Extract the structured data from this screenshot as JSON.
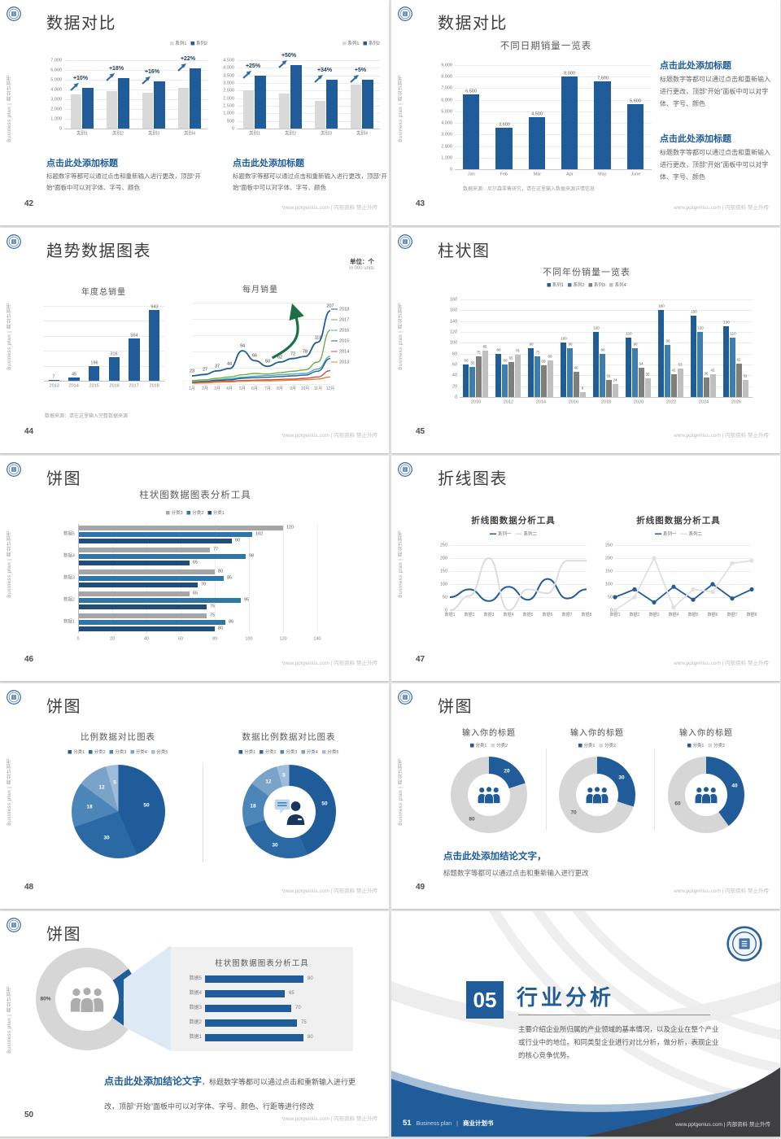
{
  "page": {
    "sidebar_text": "Business plan | 商业计划书",
    "footer_site": "www.pptgenius.com | 内部资料 禁止外传"
  },
  "colors": {
    "primary_blue": "#1F5C99",
    "medium_blue": "#3D7CB0",
    "navy": "#1F4E79",
    "light_gray_bar": "#D9D9D9",
    "gray_bar": "#A6A6A6",
    "green_arrow": "#1B7145"
  },
  "slides": {
    "s42": {
      "number": "42",
      "title": "数据对比",
      "block1_title": "点击此处添加标题",
      "block1_body": "标题数字等都可以通过点击和重新输入进行更改，顶部“开始”面板中可以对字体、字号、颜色",
      "block2_title": "点击此处添加标题",
      "block2_body": "标题数字等都可以通过点击和重新输入进行更改，顶部“开始”面板中可以对字体、字号、颜色"
    },
    "s43": {
      "number": "43",
      "title": "数据对比",
      "chart_title": "不同日期销量一览表",
      "source_note": "数据来源：尼尔森零售研究，请在这里输入数据来源详情信息",
      "block1_title": "点击此处添加标题",
      "block1_body": "标题数字等都可以通过点击和重新输入进行更改，顶部“开始”面板中可以对字体、字号、颜色",
      "block2_title": "点击此处添加标题",
      "block2_body": "标题数字等都可以通过点击和重新输入进行更改，顶部“开始”面板中可以对字体、字号、颜色"
    },
    "s44": {
      "number": "44",
      "title": "趋势数据图表",
      "unit_main": "单位：个",
      "unit_sub": "in 000 units",
      "chart_title_left": "年度总销量",
      "chart_title_right": "每月销量",
      "source_note": "数据来源：请在这里输入完整数据来源"
    },
    "s45": {
      "number": "45",
      "title": "柱状图",
      "chart_title": "不同年份销量一览表"
    },
    "s46": {
      "number": "46",
      "title": "饼图",
      "chart_title": "柱状图数据图表分析工具"
    },
    "s47": {
      "number": "47",
      "title": "折线图表",
      "chart_title": "折线图数据分析工具"
    },
    "s48": {
      "number": "48",
      "title": "饼图",
      "chart_title_left": "比例数据对比图表",
      "chart_title_right": "数据比例数据对比图表"
    },
    "s49": {
      "number": "49",
      "title": "饼图",
      "chart_title": "输入你的标题",
      "conclusion_title": "点击此处添加结论文字，",
      "conclusion_body": "标题数字等都可以通过点击和重新输入进行更改"
    },
    "s50": {
      "number": "50",
      "title": "饼图",
      "panel_title": "柱状图数据图表分析工具",
      "conclusion_title": "点击此处添加结论文字",
      "conclusion_body": "，标题数字等都可以通过点击和重新输入进行更改，顶部“开始”面板中可以对字体、字号、颜色、行距等进行修改"
    },
    "s51": {
      "number": "51",
      "section_no": "05",
      "title": "行业分析",
      "body": "主要介绍企业所归属的产业领域的基本情况，以及企业在整个产业或行业中的地位。和同类型企业进行对比分析，做分析，表现企业的核心竞争优势。",
      "footer_en": "Business plan",
      "footer_sep": "|",
      "footer_cn": "商业计划书"
    }
  },
  "chart_data": [
    {
      "id": "s42a",
      "type": "bar",
      "categories": [
        "类别1",
        "类别2",
        "类别3",
        "类别4"
      ],
      "series": [
        {
          "name": "系列1",
          "color": "#D9D9D9",
          "values": [
            3500,
            3800,
            3700,
            4200
          ]
        },
        {
          "name": "系列2",
          "color": "#1F5C99",
          "values": [
            4200,
            5200,
            4800,
            6200
          ]
        }
      ],
      "ylim": [
        0,
        7000
      ],
      "ytick": 1000,
      "padT": 16,
      "annotations": [
        "+10%",
        "+18%",
        "+16%",
        "+22%"
      ]
    },
    {
      "id": "s42b",
      "type": "bar",
      "categories": [
        "类别1",
        "类别2",
        "类别3",
        "类别4"
      ],
      "series": [
        {
          "name": "系列1",
          "color": "#D9D9D9",
          "values": [
            2500,
            2300,
            1800,
            2900
          ]
        },
        {
          "name": "系列2",
          "color": "#1F5C99",
          "values": [
            3500,
            4200,
            3200,
            3200
          ]
        }
      ],
      "ylim": [
        0,
        4500
      ],
      "ytick": 500,
      "padT": 16,
      "annotations": [
        "+25%",
        "+50%",
        "+34%",
        "+5%"
      ]
    },
    {
      "id": "s43",
      "type": "bar",
      "title": "不同日期销量一览表",
      "categories": [
        "Jan",
        "Feb",
        "Mar",
        "Apr",
        "May",
        "June"
      ],
      "series": [
        {
          "name": "销量",
          "color": "#1F5C99",
          "values": [
            6500,
            3600,
            4500,
            8000,
            7600,
            5600
          ]
        }
      ],
      "ylim": [
        0,
        9000
      ],
      "ytick": 1000,
      "value_labels": true,
      "padT": 10,
      "slot": 0.5
    },
    {
      "id": "s44a",
      "type": "bar",
      "title": "年度总销量",
      "categories": [
        "2013",
        "2014",
        "2015",
        "2016",
        "2017",
        "2018"
      ],
      "series": [
        {
          "name": "销量",
          "color": "#1F5C99",
          "values": [
            7,
            45,
            196,
            316,
            564,
            943
          ]
        }
      ],
      "ylim": [
        0,
        1000
      ],
      "ytick": 200,
      "yaxis": false,
      "value_labels": true,
      "padT": 10,
      "slot": 0.55
    },
    {
      "id": "s44b",
      "type": "line",
      "title": "每月销量",
      "smooth": true,
      "legend_right": true,
      "arrow": true,
      "x": [
        "1月",
        "2月",
        "3月",
        "4月",
        "5月",
        "6月",
        "7月",
        "8月",
        "9月",
        "10月",
        "11月",
        "12月"
      ],
      "ylim": [
        0,
        230
      ],
      "ytick": 46,
      "yaxis": false,
      "series": [
        {
          "name": "2018",
          "color": "#1F5C99",
          "width": 1.8,
          "labels": true,
          "values": [
            23,
            27,
            37,
            44,
            94,
            66,
            50,
            62,
            72,
            78,
            118,
            207
          ]
        },
        {
          "name": "2017",
          "color": "#70AD47",
          "values": [
            10,
            12,
            16,
            20,
            26,
            30,
            28,
            32,
            36,
            40,
            62,
            152
          ]
        },
        {
          "name": "2016",
          "color": "#4BACC6",
          "values": [
            6,
            8,
            12,
            15,
            19,
            22,
            24,
            26,
            28,
            30,
            42,
            78
          ]
        },
        {
          "name": "2015",
          "color": "#2E5F8A",
          "values": [
            5,
            7,
            10,
            12,
            16,
            18,
            19,
            21,
            23,
            25,
            36,
            72
          ]
        },
        {
          "name": "2014",
          "color": "#C0504D",
          "values": [
            3,
            5,
            7,
            8,
            10,
            11,
            12,
            13,
            14,
            16,
            20,
            38
          ]
        },
        {
          "name": "2013",
          "color": "#ED7D31",
          "values": [
            2,
            3,
            5,
            6,
            8,
            9,
            9,
            10,
            11,
            12,
            14,
            20
          ]
        }
      ]
    },
    {
      "id": "s45",
      "type": "bar",
      "title": "不同年份销量一览表",
      "categories": [
        "2010",
        "2012",
        "2014",
        "2016",
        "2018",
        "2020",
        "2022",
        "2024",
        "2026"
      ],
      "series": [
        {
          "name": "系列1",
          "color": "#1F5C99",
          "values": [
            60,
            80,
            90,
            100,
            120,
            110,
            160,
            150,
            130
          ]
        },
        {
          "name": "系列2",
          "color": "#3D7CB0",
          "values": [
            55,
            60,
            75,
            90,
            80,
            90,
            96,
            120,
            110
          ]
        },
        {
          "name": "系列3",
          "color": "#7F7F7F",
          "values": [
            75,
            65,
            58,
            46,
            32,
            54,
            42,
            36,
            62
          ]
        },
        {
          "name": "系列4",
          "color": "#BFBFBF",
          "values": [
            85,
            78,
            68,
            9,
            24,
            35,
            53,
            42,
            32
          ]
        }
      ],
      "ylim": [
        0,
        180
      ],
      "ytick": 20,
      "value_labels": true,
      "padT": 10,
      "slot": 0.78
    },
    {
      "id": "s46",
      "type": "bar",
      "variant": "horizontal-grouped",
      "title": "柱状图数据图表分析工具",
      "categories": [
        "数据5",
        "数据4",
        "数据3",
        "数据2",
        "数据1"
      ],
      "series": [
        {
          "name": "分类3",
          "color": "#A6A6A6",
          "values": [
            120,
            77,
            80,
            65,
            75
          ]
        },
        {
          "name": "分类2",
          "color": "#2E75A8",
          "values": [
            102,
            98,
            85,
            95,
            86
          ]
        },
        {
          "name": "分类1",
          "color": "#1F4E79",
          "values": [
            90,
            65,
            70,
            75,
            80
          ]
        }
      ],
      "xlim": [
        0,
        140
      ],
      "xtick": 20
    },
    {
      "id": "s47a",
      "type": "line",
      "title": "折线图数据分析工具",
      "smooth": true,
      "legend_type": "line",
      "x": [
        "数据1",
        "数据2",
        "数据3",
        "数据4",
        "数据5",
        "数据6",
        "数据7",
        "数据8"
      ],
      "ylim": [
        0,
        250
      ],
      "ytick": 50,
      "series": [
        {
          "name": "系列一",
          "color": "#1F5C99",
          "width": 2,
          "values": [
            50,
            80,
            35,
            90,
            40,
            120,
            45,
            80
          ]
        },
        {
          "name": "系列二",
          "color": "#DCDCDC",
          "width": 2,
          "values": [
            0,
            55,
            200,
            0,
            80,
            65,
            190,
            190
          ]
        }
      ]
    },
    {
      "id": "s47b",
      "type": "line",
      "title": "折线图数据分析工具",
      "markers": true,
      "legend_type": "line",
      "x": [
        "数据1",
        "数据2",
        "数据3",
        "数据4",
        "数据5",
        "数据6",
        "数据7",
        "数据8"
      ],
      "ylim": [
        0,
        250
      ],
      "ytick": 50,
      "series": [
        {
          "name": "系列一",
          "color": "#1F5C99",
          "width": 1.8,
          "values": [
            50,
            80,
            30,
            90,
            40,
            100,
            45,
            80
          ]
        },
        {
          "name": "系列二",
          "color": "#E0E0E0",
          "width": 1.8,
          "values": [
            0,
            50,
            200,
            10,
            80,
            70,
            180,
            190
          ]
        }
      ]
    },
    {
      "id": "s48a",
      "type": "pie",
      "title": "比例数据对比图表",
      "size": 115,
      "labels": [
        "分类1",
        "分类2",
        "分类3",
        "分类4",
        "分类5"
      ],
      "values": [
        50,
        30,
        18,
        12,
        5
      ],
      "colors": [
        "#1F5C99",
        "#2B69A5",
        "#4C86B8",
        "#7AA3C9",
        "#9FBDD8"
      ]
    },
    {
      "id": "s48b",
      "type": "pie",
      "title": "数据比例数据对比图表",
      "size": 115,
      "inner": 64,
      "icon": "person-speech",
      "labels": [
        "分类1",
        "分类2",
        "分类3",
        "分类4",
        "分类5"
      ],
      "values": [
        50,
        30,
        18,
        12,
        5
      ],
      "colors": [
        "#1F5C99",
        "#2B69A5",
        "#4C86B8",
        "#7AA3C9",
        "#9FBDD8"
      ]
    },
    {
      "id": "s49a",
      "type": "pie",
      "title": "输入你的标题",
      "size": 94,
      "inner": 52,
      "icon": "people",
      "icon_color": "#1F5C99",
      "labels": [
        "分类1",
        "分类2"
      ],
      "values": [
        20,
        80
      ],
      "colors": [
        "#1F5C99",
        "#D6D6D6"
      ],
      "label_colors": [
        "#fff",
        "#595959"
      ]
    },
    {
      "id": "s49b",
      "type": "pie",
      "title": "输入你的标题",
      "size": 94,
      "inner": 52,
      "icon": "people",
      "icon_color": "#1F5C99",
      "labels": [
        "分类1",
        "分类2"
      ],
      "values": [
        30,
        70
      ],
      "colors": [
        "#1F5C99",
        "#D6D6D6"
      ],
      "label_colors": [
        "#fff",
        "#595959"
      ]
    },
    {
      "id": "s49c",
      "type": "pie",
      "title": "输入你的标题",
      "size": 94,
      "inner": 52,
      "icon": "people",
      "icon_color": "#1F5C99",
      "labels": [
        "分类1",
        "分类2"
      ],
      "values": [
        40,
        60
      ],
      "colors": [
        "#1F5C99",
        "#D6D6D6"
      ],
      "label_colors": [
        "#fff",
        "#595959"
      ]
    },
    {
      "id": "s50a",
      "type": "pie",
      "size": 126,
      "inner": 78,
      "start": 54,
      "icon": "people",
      "icon_color": "#ADADAD",
      "labels": [
        "分类1",
        "分类2"
      ],
      "values": [
        20,
        80
      ],
      "slice_label_texts": [
        "20%",
        "80%"
      ],
      "colors": [
        "#1F5C99",
        "#D6D6D6"
      ],
      "label_colors": [
        "#fff",
        "#4d4d4d"
      ]
    },
    {
      "id": "s50b",
      "type": "bar",
      "variant": "horizontal",
      "title": "柱状图数据图表分析工具",
      "categories": [
        "数据5",
        "数据4",
        "数据3",
        "数据2",
        "数据1"
      ],
      "values": [
        80,
        65,
        70,
        75,
        80
      ],
      "xlim": [
        0,
        90
      ],
      "color": "#1F5C99",
      "value_labels": true
    }
  ]
}
